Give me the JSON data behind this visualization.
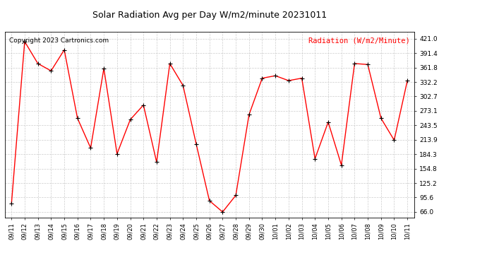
{
  "title": "Solar Radiation Avg per Day W/m2/minute 20231011",
  "copyright": "Copyright 2023 Cartronics.com",
  "legend_label": "Radiation (W/m2/Minute)",
  "dates": [
    "09/11",
    "09/12",
    "09/13",
    "09/14",
    "09/15",
    "09/16",
    "09/17",
    "09/18",
    "09/19",
    "09/20",
    "09/21",
    "09/22",
    "09/23",
    "09/24",
    "09/25",
    "09/26",
    "09/27",
    "09/28",
    "09/29",
    "09/30",
    "10/01",
    "10/02",
    "10/03",
    "10/04",
    "10/05",
    "10/06",
    "10/07",
    "10/08",
    "10/09",
    "10/10",
    "10/11"
  ],
  "values": [
    83.0,
    415.0,
    370.0,
    355.0,
    398.0,
    258.0,
    197.0,
    360.0,
    185.0,
    255.0,
    285.0,
    168.0,
    370.0,
    325.0,
    205.0,
    89.0,
    66.0,
    100.0,
    265.0,
    340.0,
    345.0,
    335.0,
    340.0,
    175.0,
    250.0,
    162.0,
    370.0,
    368.0,
    258.0,
    213.0,
    335.0
  ],
  "line_color": "red",
  "marker_color": "black",
  "bg_color": "white",
  "grid_color": "#cccccc",
  "yticks": [
    66.0,
    95.6,
    125.2,
    154.8,
    184.3,
    213.9,
    243.5,
    273.1,
    302.7,
    332.2,
    361.8,
    391.4,
    421.0
  ],
  "ymin": 55.0,
  "ymax": 435.0,
  "title_fontsize": 9,
  "copyright_fontsize": 6.5,
  "legend_fontsize": 7.5,
  "tick_fontsize": 6,
  "ytick_fontsize": 6.5
}
